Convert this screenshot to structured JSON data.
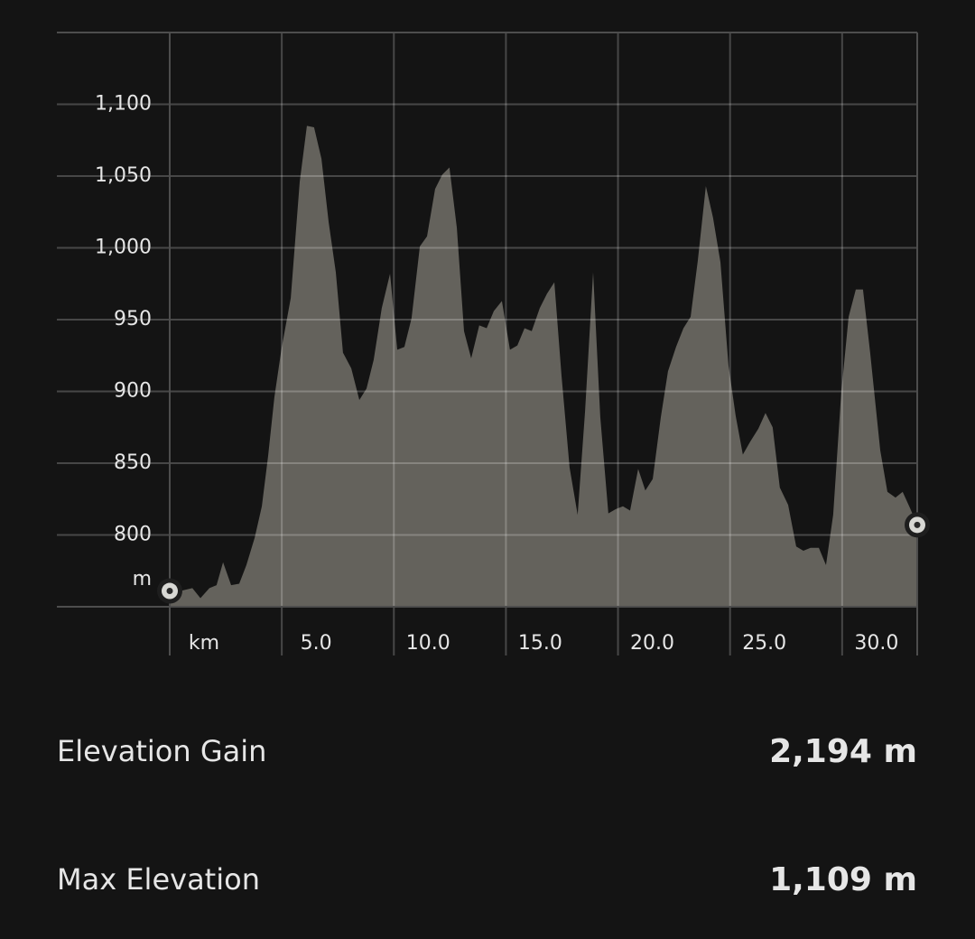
{
  "chart_data": {
    "type": "area",
    "x_unit": "km",
    "y_unit": "m",
    "color": "#64625c",
    "grid": true,
    "xlim": [
      0,
      33.35
    ],
    "ylim": [
      750,
      1150
    ],
    "xticks": [
      {
        "value": 5,
        "label": "5.0"
      },
      {
        "value": 10,
        "label": "10.0"
      },
      {
        "value": 15,
        "label": "15.0"
      },
      {
        "value": 20,
        "label": "20.0"
      },
      {
        "value": 25,
        "label": "25.0"
      },
      {
        "value": 30,
        "label": "30.0"
      }
    ],
    "yticks": [
      800,
      850,
      900,
      950,
      {
        "value": 1000,
        "label": "1,000"
      },
      {
        "value": 1050,
        "label": "1,050"
      },
      {
        "value": 1100,
        "label": "1,100"
      }
    ],
    "x": [
      0,
      0.48,
      1.01,
      1.37,
      1.77,
      2.09,
      2.38,
      2.74,
      3.1,
      3.42,
      3.79,
      4.11,
      4.39,
      4.67,
      4.99,
      5.4,
      5.8,
      6.12,
      6.44,
      6.77,
      7.09,
      7.41,
      7.73,
      8.1,
      8.46,
      8.78,
      9.1,
      9.46,
      9.83,
      10.15,
      10.47,
      10.79,
      11.16,
      11.48,
      11.84,
      12.16,
      12.48,
      12.81,
      13.13,
      13.45,
      13.81,
      14.14,
      14.46,
      14.82,
      15.18,
      15.51,
      15.83,
      16.15,
      16.51,
      16.83,
      17.16,
      17.48,
      17.84,
      18.2,
      18.53,
      18.89,
      19.21,
      19.57,
      19.9,
      20.22,
      20.54,
      20.9,
      21.22,
      21.55,
      21.91,
      22.23,
      22.59,
      22.92,
      23.24,
      23.56,
      23.92,
      24.24,
      24.57,
      24.93,
      25.25,
      25.57,
      25.9,
      26.26,
      26.58,
      26.9,
      27.22,
      27.59,
      27.95,
      28.27,
      28.59,
      28.96,
      29.28,
      29.6,
      29.96,
      30.29,
      30.61,
      30.93,
      31.25,
      31.7,
      32.02,
      32.38,
      32.7,
      33.02,
      33.35
    ],
    "values": [
      761,
      761,
      763,
      756,
      763,
      765,
      781,
      765,
      766,
      779,
      798,
      820,
      855,
      896,
      930,
      965,
      1046,
      1085,
      1084,
      1062,
      1018,
      983,
      927,
      916,
      894,
      902,
      922,
      958,
      982,
      929,
      931,
      951,
      1001,
      1008,
      1041,
      1051,
      1056,
      1014,
      942,
      923,
      946,
      944,
      956,
      963,
      929,
      932,
      944,
      942,
      958,
      968,
      976,
      911,
      847,
      814,
      886,
      983,
      882,
      815,
      818,
      820,
      817,
      846,
      831,
      839,
      882,
      914,
      931,
      944,
      952,
      991,
      1043,
      1021,
      990,
      918,
      883,
      856,
      865,
      874,
      885,
      875,
      833,
      821,
      792,
      789,
      791,
      791,
      779,
      814,
      899,
      952,
      971,
      971,
      927,
      859,
      830,
      826,
      830,
      819,
      807
    ]
  },
  "stats": [
    {
      "label": "Elevation Gain",
      "value": "2,194 m"
    },
    {
      "label": "Max Elevation",
      "value": "1,109 m"
    }
  ]
}
